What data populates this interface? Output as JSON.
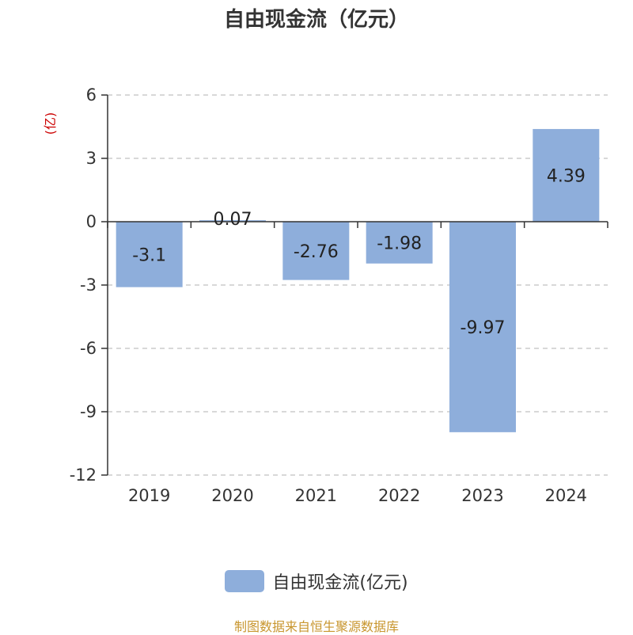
{
  "chart_data": {
    "type": "bar",
    "title": "自由现金流（亿元）",
    "ylabel": "(亿)",
    "categories": [
      "2019",
      "2020",
      "2021",
      "2022",
      "2023",
      "2024"
    ],
    "series": [
      {
        "name": "自由现金流(亿元)",
        "values": [
          -3.1,
          0.07,
          -2.76,
          -1.98,
          -9.97,
          4.39
        ]
      }
    ],
    "data_labels": [
      "-3.1",
      "0.07",
      "-2.76",
      "-1.98",
      "-9.97",
      "4.39"
    ],
    "ylim": [
      -12,
      6
    ],
    "yticks": [
      6,
      3,
      0,
      -3,
      -6,
      -9,
      -12
    ],
    "grid": true,
    "legend_position": "bottom",
    "colors": {
      "bar": "#8eaedb",
      "grid": "#cccccc",
      "axis": "#333333",
      "unit": "#cc0000"
    }
  },
  "footer": {
    "source": "制图数据来自恒生聚源数据库"
  }
}
